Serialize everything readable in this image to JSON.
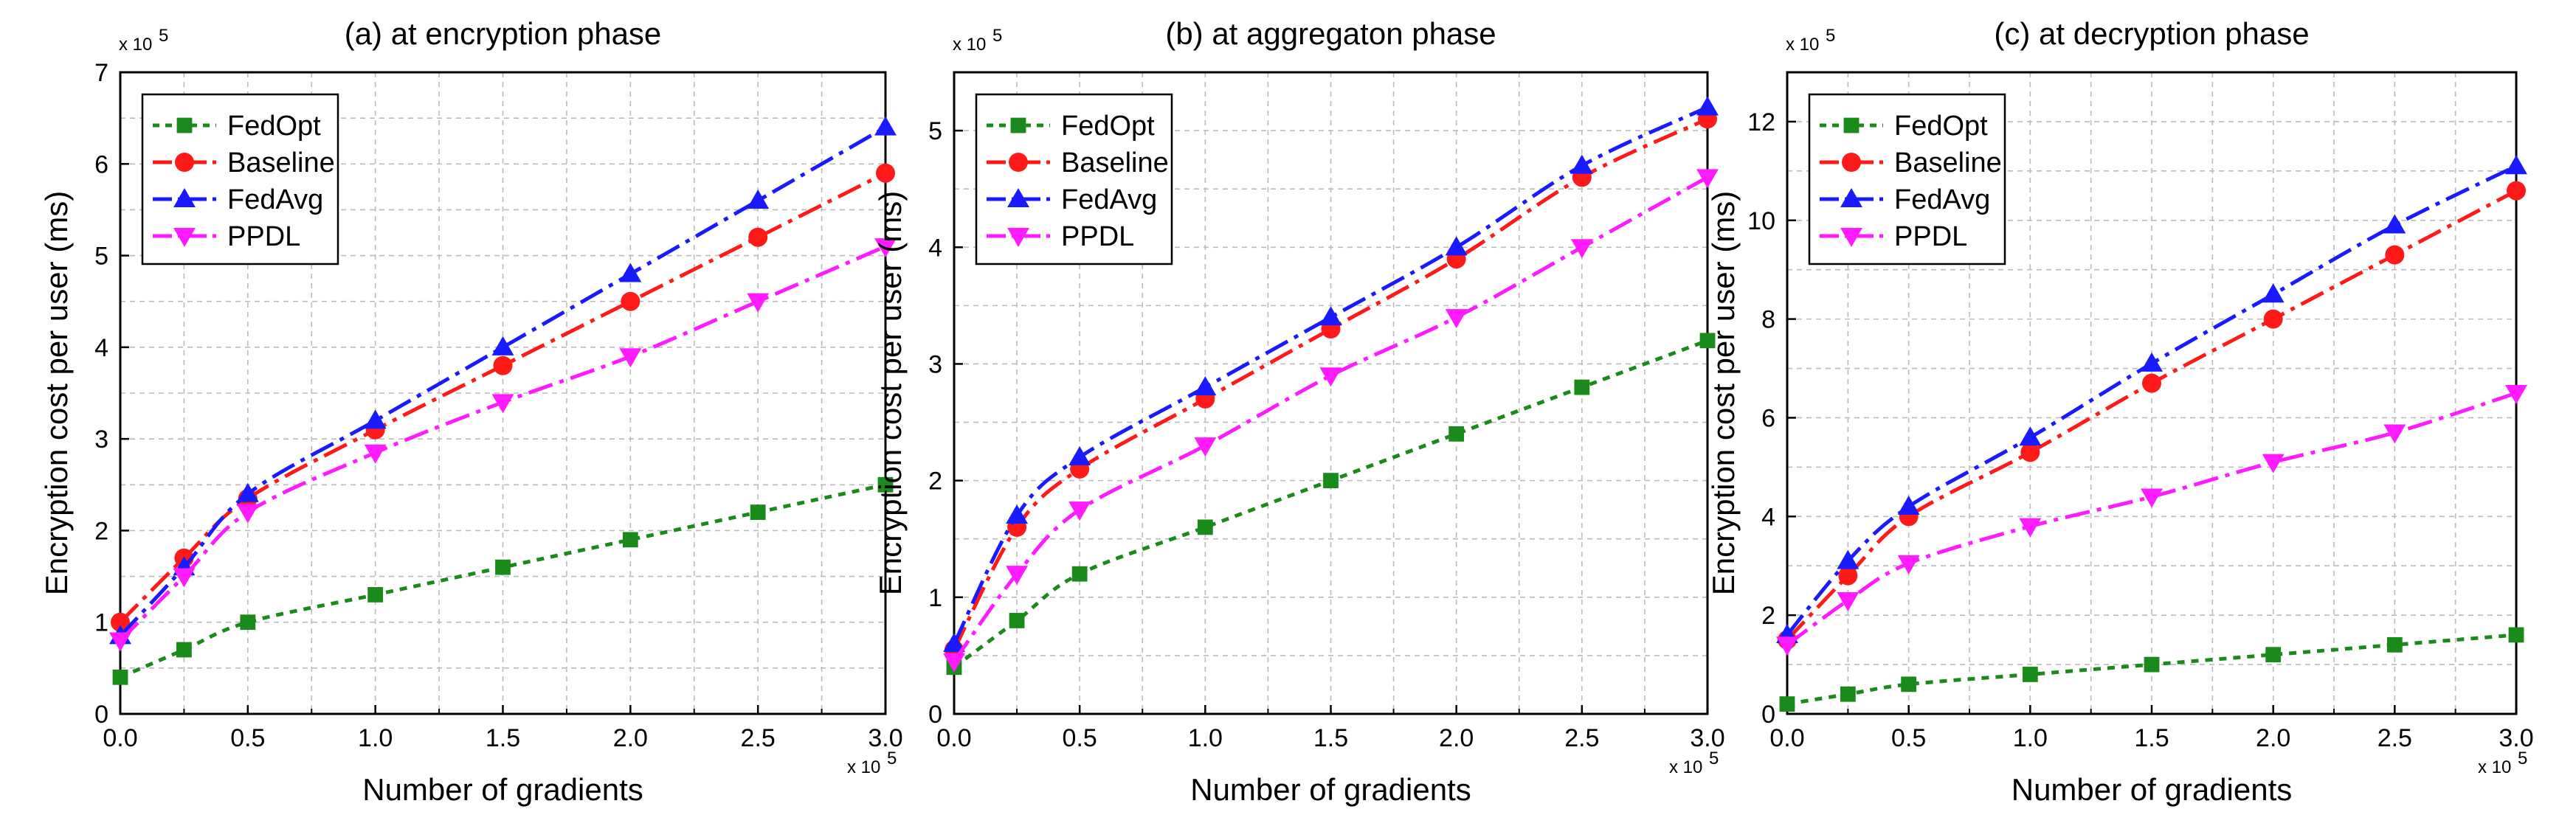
{
  "chart_data": [
    {
      "type": "line",
      "title": "(a) at encryption phase",
      "xlabel": "Number of gradients",
      "ylabel": "Encryption cost per user (ms)",
      "x_multiplier": "x 10",
      "x_multiplier_exp": "5",
      "y_multiplier": "x 10",
      "y_multiplier_exp": "5",
      "xlim": [
        0,
        3.0
      ],
      "ylim": [
        0,
        7
      ],
      "xticks": [
        0.0,
        0.5,
        1.0,
        1.5,
        2.0,
        2.5,
        3.0
      ],
      "xtick_labels": [
        "0.0",
        "0.5",
        "1.0",
        "1.5",
        "2.0",
        "2.5",
        "3.0"
      ],
      "yticks": [
        0,
        1,
        2,
        3,
        4,
        5,
        6,
        7
      ],
      "ytick_labels": [
        "0",
        "1",
        "2",
        "3",
        "4",
        "5",
        "6",
        "7"
      ],
      "grid": true,
      "legend_position": "top-left",
      "x": [
        0,
        0.25,
        0.5,
        1.0,
        1.5,
        2.0,
        2.5,
        3.0
      ],
      "series": [
        {
          "name": "FedOpt",
          "values": [
            0.4,
            0.7,
            1.0,
            1.3,
            1.6,
            1.9,
            2.2,
            2.5
          ]
        },
        {
          "name": "Baseline",
          "values": [
            1.0,
            1.7,
            2.35,
            3.1,
            3.8,
            4.5,
            5.2,
            5.9
          ]
        },
        {
          "name": "FedAvg",
          "values": [
            0.85,
            1.6,
            2.4,
            3.2,
            4.0,
            4.8,
            5.6,
            6.4
          ]
        },
        {
          "name": "PPDL",
          "values": [
            0.8,
            1.5,
            2.2,
            2.85,
            3.4,
            3.9,
            4.5,
            5.1
          ]
        }
      ]
    },
    {
      "type": "line",
      "title": "(b) at aggregaton phase",
      "xlabel": "Number of gradients",
      "ylabel": "Encryption cost per user (ms)",
      "x_multiplier": "x 10",
      "x_multiplier_exp": "5",
      "y_multiplier": "x 10",
      "y_multiplier_exp": "5",
      "xlim": [
        0,
        3.0
      ],
      "ylim": [
        0,
        5.5
      ],
      "xticks": [
        0.0,
        0.5,
        1.0,
        1.5,
        2.0,
        2.5,
        3.0
      ],
      "xtick_labels": [
        "0.0",
        "0.5",
        "1.0",
        "1.5",
        "2.0",
        "2.5",
        "3.0"
      ],
      "yticks": [
        0,
        1,
        2,
        3,
        4,
        5
      ],
      "ytick_labels": [
        "0",
        "1",
        "2",
        "3",
        "4",
        "5"
      ],
      "grid": true,
      "legend_position": "top-left",
      "x": [
        0,
        0.25,
        0.5,
        1.0,
        1.5,
        2.0,
        2.5,
        3.0
      ],
      "series": [
        {
          "name": "FedOpt",
          "values": [
            0.4,
            0.8,
            1.2,
            1.6,
            2.0,
            2.4,
            2.8,
            3.2
          ]
        },
        {
          "name": "Baseline",
          "values": [
            0.55,
            1.6,
            2.1,
            2.7,
            3.3,
            3.9,
            4.6,
            5.1
          ]
        },
        {
          "name": "FedAvg",
          "values": [
            0.6,
            1.7,
            2.2,
            2.8,
            3.4,
            4.0,
            4.7,
            5.2
          ]
        },
        {
          "name": "PPDL",
          "values": [
            0.45,
            1.2,
            1.75,
            2.3,
            2.9,
            3.4,
            4.0,
            4.6
          ]
        }
      ]
    },
    {
      "type": "line",
      "title": "(c) at decryption phase",
      "xlabel": "Number of gradients",
      "ylabel": "Encryption cost per user (ms)",
      "x_multiplier": "x 10",
      "x_multiplier_exp": "5",
      "y_multiplier": "x 10",
      "y_multiplier_exp": "5",
      "xlim": [
        0,
        3.0
      ],
      "ylim": [
        0,
        13
      ],
      "xticks": [
        0.0,
        0.5,
        1.0,
        1.5,
        2.0,
        2.5,
        3.0
      ],
      "xtick_labels": [
        "0.0",
        "0.5",
        "1.0",
        "1.5",
        "2.0",
        "2.5",
        "3.0"
      ],
      "yticks": [
        0,
        2,
        4,
        6,
        8,
        10,
        12
      ],
      "ytick_labels": [
        "0",
        "2",
        "4",
        "6",
        "8",
        "10",
        "12"
      ],
      "grid": true,
      "legend_position": "top-left",
      "x": [
        0,
        0.25,
        0.5,
        1.0,
        1.5,
        2.0,
        2.5,
        3.0
      ],
      "series": [
        {
          "name": "FedOpt",
          "values": [
            0.2,
            0.4,
            0.6,
            0.8,
            1.0,
            1.2,
            1.4,
            1.6
          ]
        },
        {
          "name": "Baseline",
          "values": [
            1.5,
            2.8,
            4.0,
            5.3,
            6.7,
            8.0,
            9.3,
            10.6
          ]
        },
        {
          "name": "FedAvg",
          "values": [
            1.6,
            3.1,
            4.2,
            5.6,
            7.1,
            8.5,
            9.9,
            11.1
          ]
        },
        {
          "name": "PPDL",
          "values": [
            1.4,
            2.3,
            3.05,
            3.8,
            4.4,
            5.1,
            5.7,
            6.5
          ]
        }
      ]
    }
  ],
  "colors": {
    "FedOpt": "#1a8a1a",
    "Baseline": "#ff1a1a",
    "FedAvg": "#1a1aff",
    "PPDL": "#ff1aff",
    "grid": "#bbbbbb",
    "axis": "#000000"
  },
  "markers": {
    "FedOpt": "square",
    "Baseline": "circle",
    "FedAvg": "triangle-up",
    "PPDL": "triangle-down"
  }
}
